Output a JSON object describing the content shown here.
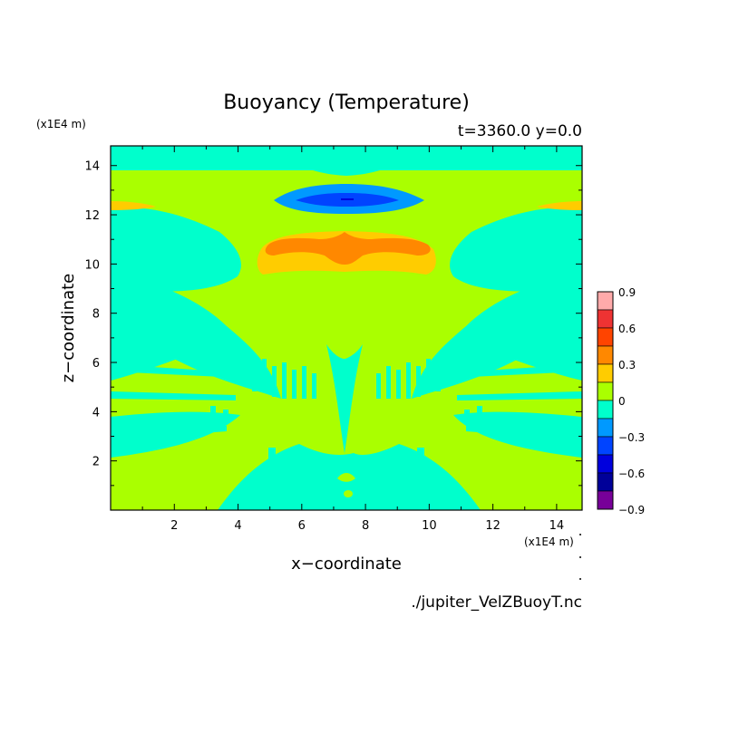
{
  "chart_data": {
    "type": "heatmap",
    "title": "Buoyancy (Temperature)",
    "subtitle": "t=3360.0 y=0.0",
    "xlabel": "x−coordinate",
    "ylabel": "z−coordinate",
    "x_unit": "(x1E4 m)",
    "y_unit": "(x1E4 m)",
    "xlim": [
      0,
      14.8
    ],
    "ylim": [
      0,
      14.8
    ],
    "x_ticks": [
      2,
      4,
      6,
      8,
      10,
      12,
      14
    ],
    "y_ticks": [
      2,
      4,
      6,
      8,
      10,
      12,
      14
    ],
    "footer": "./jupiter_VelZBuoyT.nc",
    "grid": false,
    "legend_position": "right",
    "colorbar": {
      "labels": [
        "0.9",
        "0.6",
        "0.3",
        "0",
        "−0.3",
        "−0.6",
        "−0.9"
      ],
      "label_values": [
        0.9,
        0.6,
        0.3,
        0,
        -0.3,
        -0.6,
        -0.9
      ],
      "levels": [
        0.9,
        0.75,
        0.6,
        0.45,
        0.3,
        0.15,
        0,
        -0.15,
        -0.3,
        -0.45,
        -0.6,
        -0.75,
        -0.9
      ],
      "colors": [
        "#ffaaaa",
        "#ee3333",
        "#ff4400",
        "#ff8800",
        "#ffcc00",
        "#aaff00",
        "#00ffcc",
        "#0099ff",
        "#0044ff",
        "#0000dd",
        "#000099",
        "#770099"
      ]
    },
    "color_levels": {
      "background_zero_minus": "#00ffcc",
      "zero_plus": "#aaff00",
      "small_positive": "#ffcc00",
      "moderate_positive": "#ff8800",
      "small_negative": "#0099ff",
      "moderate_negative": "#0044ff"
    },
    "features": {
      "warm_core": {
        "x": [
          5.0,
          10.2
        ],
        "z": [
          9.6,
          11.4
        ],
        "peak": 0.4
      },
      "cold_cap": {
        "x": [
          5.3,
          9.7
        ],
        "z": [
          12.3,
          13.0
        ],
        "min": -0.35
      },
      "warm_edges_z": 12.5,
      "warm_edges_peak": 0.2
    }
  }
}
